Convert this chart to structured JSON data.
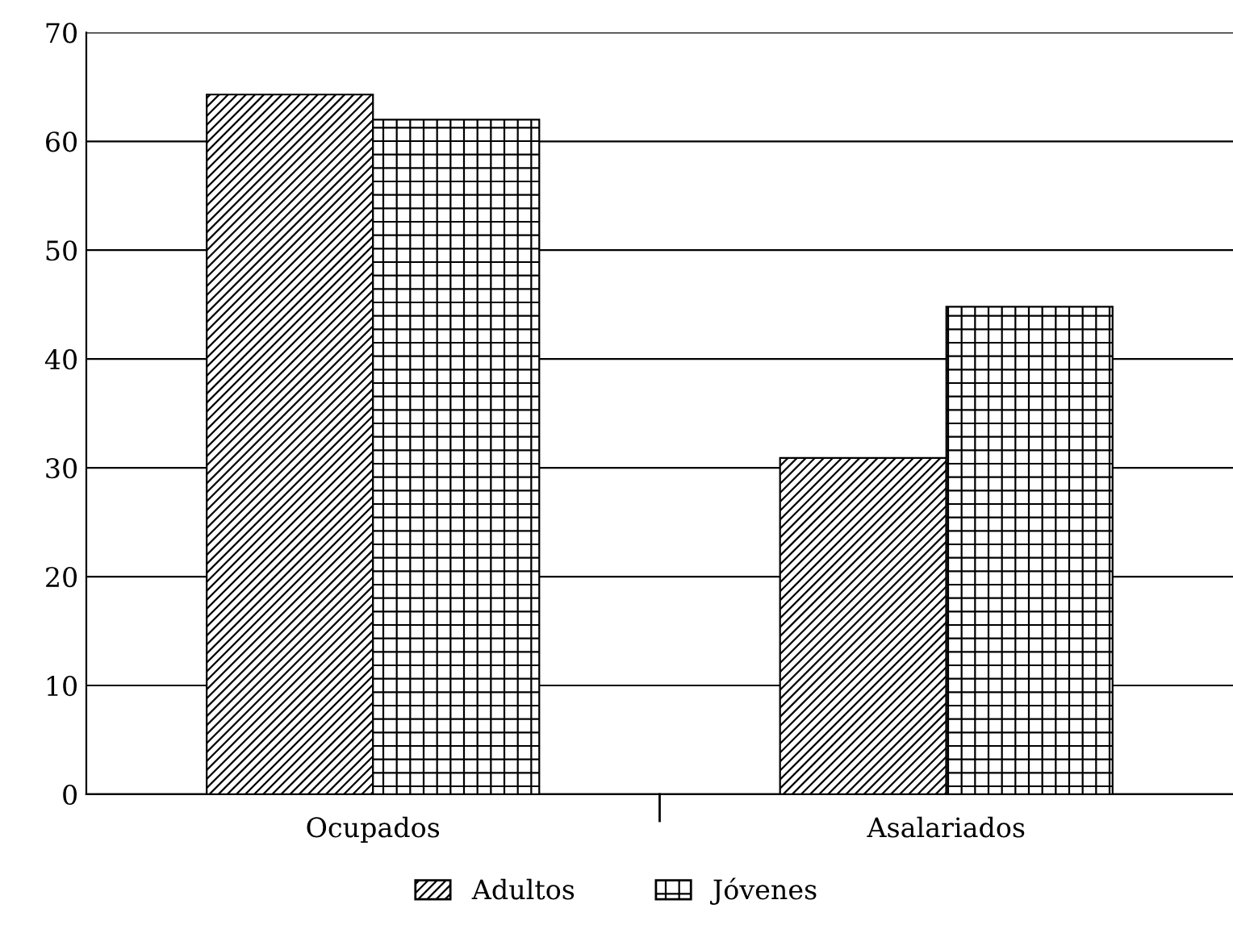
{
  "chart_data": {
    "type": "bar",
    "categories": [
      "Ocupados",
      "Asalariados"
    ],
    "series": [
      {
        "name": "Adultos",
        "color": "#000000",
        "values": [
          64.3,
          30.9
        ]
      },
      {
        "name": "Jóvenes",
        "color": "#000000",
        "values": [
          62.0,
          44.8
        ]
      }
    ],
    "ylim": [
      0,
      70
    ],
    "yticks": [
      0,
      10,
      20,
      30,
      40,
      50,
      60,
      70
    ],
    "grid": "y",
    "legend": "bottom"
  }
}
